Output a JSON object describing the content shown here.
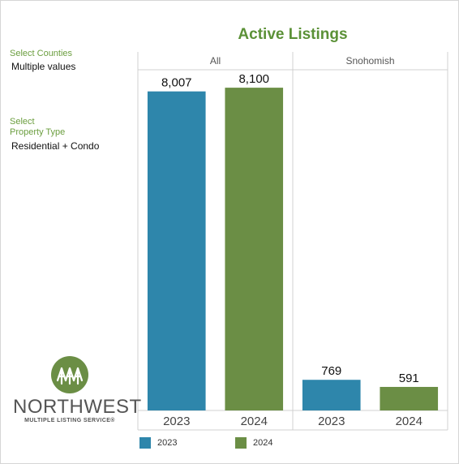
{
  "filters": {
    "counties": {
      "label": "Select Counties",
      "value": "Multiple values"
    },
    "property_type": {
      "label_line1": "Select",
      "label_line2": "Property Type",
      "value": "Residential + Condo"
    }
  },
  "logo": {
    "name": "NORTHWEST",
    "subtitle": "MULTIPLE LISTING SERVICE®"
  },
  "colors": {
    "2023": "#2e86ab",
    "2024": "#6b8e45",
    "title": "#5b9137",
    "filter_label": "#6b9e3f"
  },
  "chart_data": {
    "type": "bar",
    "title": "Active Listings",
    "panels": [
      "All",
      "Snohomish"
    ],
    "categories": [
      "2023",
      "2024"
    ],
    "series": [
      {
        "panel": "All",
        "values": [
          8007,
          8100
        ],
        "labels": [
          "8,007",
          "8,100"
        ]
      },
      {
        "panel": "Snohomish",
        "values": [
          769,
          591
        ],
        "labels": [
          "769",
          "591"
        ]
      }
    ],
    "legend": [
      {
        "label": "2023",
        "color": "#2e86ab"
      },
      {
        "label": "2024",
        "color": "#6b8e45"
      }
    ],
    "legend_position": "bottom",
    "ylim": [
      0,
      8550
    ],
    "grid": false
  }
}
